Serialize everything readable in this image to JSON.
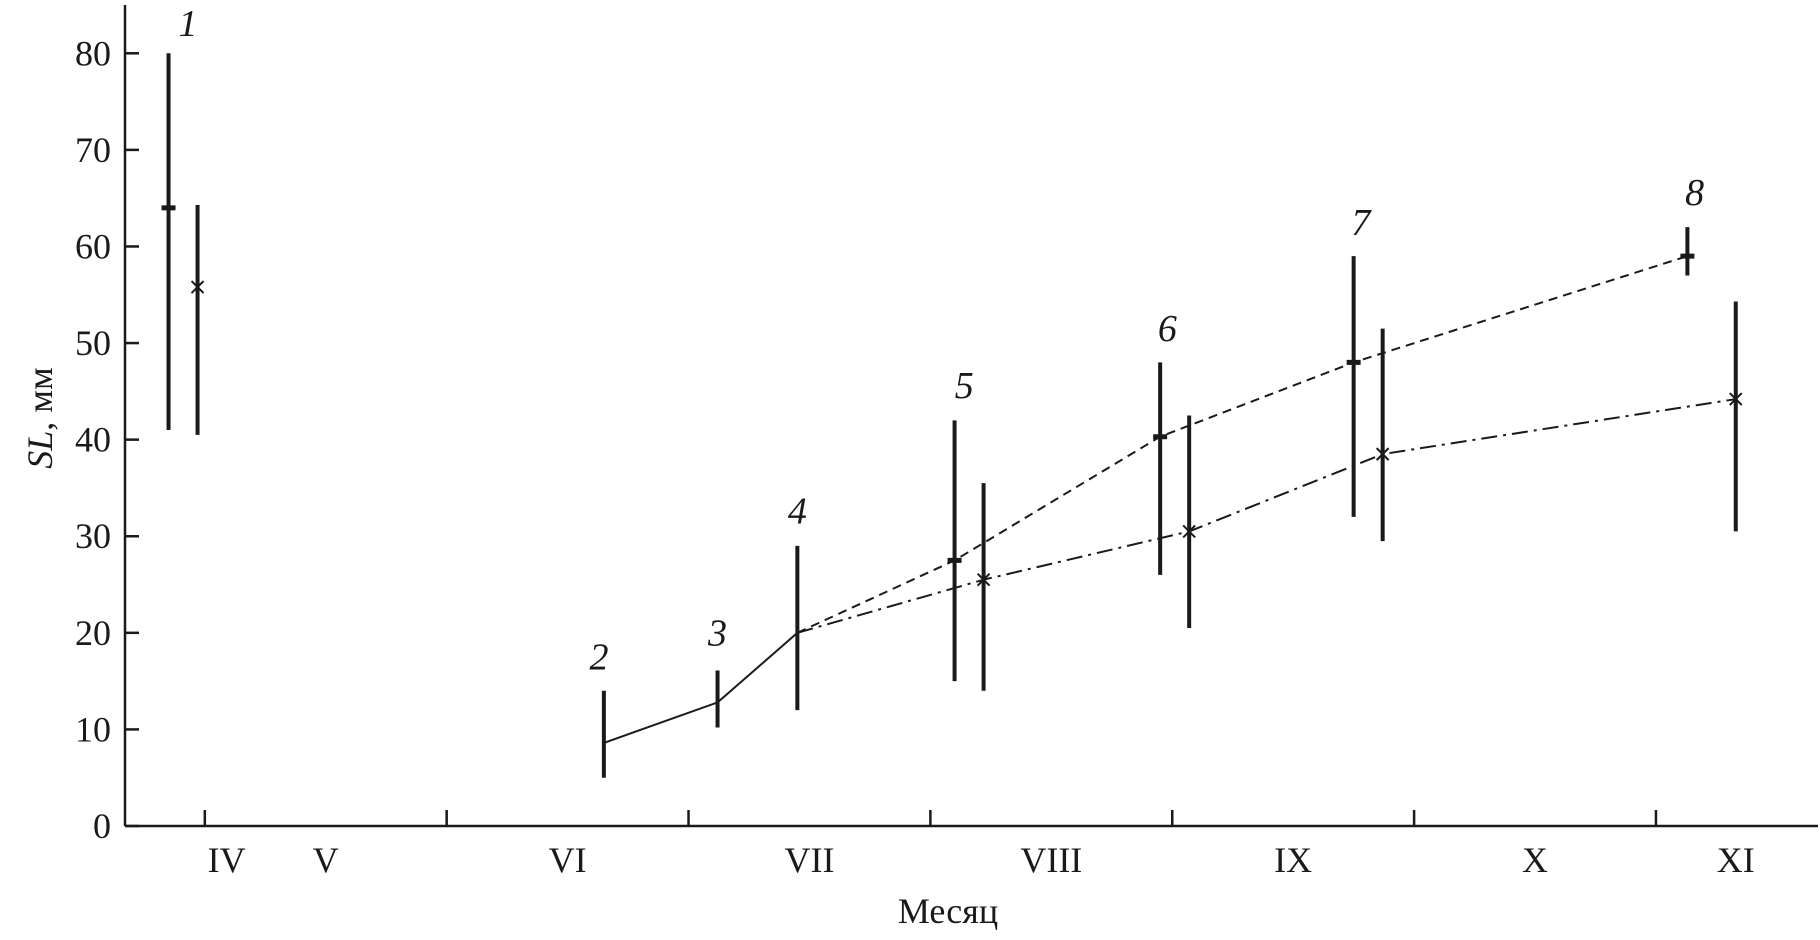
{
  "chart_data": {
    "type": "line",
    "title": "",
    "ylabel_main": "SL",
    "ylabel_unit": ", мм",
    "xlabel": "Месяц",
    "ylim": [
      0,
      85
    ],
    "yticks": [
      0,
      10,
      20,
      30,
      40,
      50,
      60,
      70,
      80
    ],
    "month_labels": [
      {
        "label": "IV",
        "x": 0.09
      },
      {
        "label": "V",
        "x": 0.5
      },
      {
        "label": "VI",
        "x": 1.5
      },
      {
        "label": "VII",
        "x": 2.5
      },
      {
        "label": "VIII",
        "x": 3.5
      },
      {
        "label": "IX",
        "x": 4.5
      },
      {
        "label": "X",
        "x": 5.5
      },
      {
        "label": "XI",
        "x": 6.33
      }
    ],
    "x_boundaries": [
      0,
      1,
      2,
      3,
      4,
      5,
      6
    ],
    "xlim": [
      -0.33,
      6.67
    ],
    "series": [
      {
        "name": "series-dash",
        "marker": "bar",
        "line": "dashed",
        "points": [
          {
            "x": -0.15,
            "y": 64,
            "low": 41,
            "high": 80
          },
          {
            "x": 3.1,
            "y": 27.5,
            "low": 15,
            "high": 42
          },
          {
            "x": 3.95,
            "y": 40.3,
            "low": 26,
            "high": 48
          },
          {
            "x": 4.75,
            "y": 48,
            "low": 32,
            "high": 59
          },
          {
            "x": 6.13,
            "y": 59,
            "low": 57,
            "high": 62
          }
        ]
      },
      {
        "name": "series-dashdot",
        "marker": "cross",
        "line": "dashdot",
        "points": [
          {
            "x": -0.03,
            "y": 55.8,
            "low": 40.5,
            "high": 64.3
          },
          {
            "x": 3.22,
            "y": 25.5,
            "low": 14,
            "high": 35.5
          },
          {
            "x": 4.07,
            "y": 30.5,
            "low": 20.5,
            "high": 42.5
          },
          {
            "x": 4.87,
            "y": 38.5,
            "low": 29.5,
            "high": 51.5
          },
          {
            "x": 6.33,
            "y": 44.2,
            "low": 30.5,
            "high": 54.3
          }
        ]
      },
      {
        "name": "series-early",
        "marker": "none",
        "line": "solid",
        "points": [
          {
            "x": 1.65,
            "y": 8.6,
            "low": 5,
            "high": 14
          },
          {
            "x": 2.12,
            "y": 12.8,
            "low": 10.2,
            "high": 16.1
          },
          {
            "x": 2.45,
            "y": 20,
            "low": 12,
            "high": 29
          }
        ]
      }
    ],
    "point_labels": [
      {
        "text": "1",
        "x": -0.07,
        "y": 81.8
      },
      {
        "text": "2",
        "x": 1.63,
        "y": 16.2
      },
      {
        "text": "3",
        "x": 2.12,
        "y": 18.7
      },
      {
        "text": "4",
        "x": 2.45,
        "y": 31.3
      },
      {
        "text": "5",
        "x": 3.14,
        "y": 44.3
      },
      {
        "text": "6",
        "x": 3.98,
        "y": 50.2
      },
      {
        "text": "7",
        "x": 4.78,
        "y": 61.2
      },
      {
        "text": "8",
        "x": 6.16,
        "y": 64.3
      }
    ]
  }
}
